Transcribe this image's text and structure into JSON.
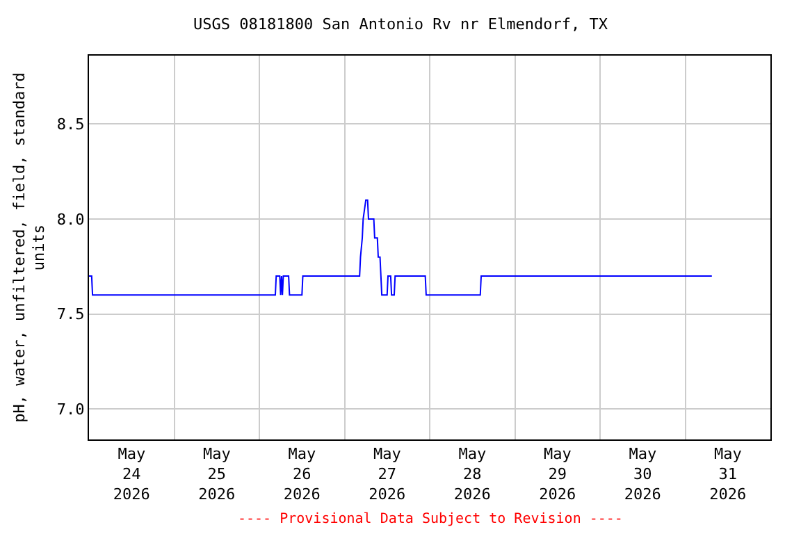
{
  "chart_data": {
    "type": "line",
    "title": "USGS 08181800 San Antonio Rv nr Elmendorf, TX",
    "ylabel": "pH, water, unfiltered, field, standard\nunits",
    "annotations": [
      "---- Provisional Data Subject to Revision ----"
    ],
    "x": [
      "2026-05-24T00:00",
      "2026-05-24T00:45",
      "2026-05-24T01:00",
      "2026-05-26T04:30",
      "2026-05-26T04:45",
      "2026-05-26T05:45",
      "2026-05-26T06:00",
      "2026-05-26T06:15",
      "2026-05-26T06:30",
      "2026-05-26T06:45",
      "2026-05-26T08:15",
      "2026-05-26T08:30",
      "2026-05-26T12:00",
      "2026-05-26T12:15",
      "2026-05-27T04:15",
      "2026-05-27T04:30",
      "2026-05-27T05:00",
      "2026-05-27T05:15",
      "2026-05-27T06:00",
      "2026-05-27T06:30",
      "2026-05-27T06:45",
      "2026-05-27T08:15",
      "2026-05-27T08:30",
      "2026-05-27T09:15",
      "2026-05-27T09:30",
      "2026-05-27T10:00",
      "2026-05-27T10:15",
      "2026-05-27T10:30",
      "2026-05-27T12:00",
      "2026-05-27T12:15",
      "2026-05-27T13:00",
      "2026-05-27T13:15",
      "2026-05-27T14:00",
      "2026-05-27T14:15",
      "2026-05-27T22:45",
      "2026-05-27T23:00",
      "2026-05-28T14:15",
      "2026-05-28T14:30",
      "2026-05-31T07:30"
    ],
    "series": [
      {
        "color": "#0000ff",
        "values": [
          7.7,
          7.7,
          7.6,
          7.6,
          7.7,
          7.7,
          7.6,
          7.7,
          7.6,
          7.7,
          7.7,
          7.6,
          7.6,
          7.7,
          7.7,
          7.8,
          7.9,
          8.0,
          8.1,
          8.1,
          8.0,
          8.0,
          7.9,
          7.9,
          7.8,
          7.8,
          7.7,
          7.6,
          7.6,
          7.7,
          7.7,
          7.6,
          7.6,
          7.7,
          7.7,
          7.6,
          7.6,
          7.7,
          7.7
        ]
      }
    ],
    "xlim": [
      "2026-05-24T00:00",
      "2026-06-01T00:00"
    ],
    "xticks": [
      {
        "value": "2026-05-24T00:00",
        "label": null
      },
      {
        "value": "2026-05-24T12:00",
        "label": "May\n24\n2026"
      },
      {
        "value": "2026-05-25T00:00",
        "label": null
      },
      {
        "value": "2026-05-25T12:00",
        "label": "May\n25\n2026"
      },
      {
        "value": "2026-05-26T00:00",
        "label": null
      },
      {
        "value": "2026-05-26T12:00",
        "label": "May\n26\n2026"
      },
      {
        "value": "2026-05-27T00:00",
        "label": null
      },
      {
        "value": "2026-05-27T12:00",
        "label": "May\n27\n2026"
      },
      {
        "value": "2026-05-28T00:00",
        "label": null
      },
      {
        "value": "2026-05-28T12:00",
        "label": "May\n28\n2026"
      },
      {
        "value": "2026-05-29T00:00",
        "label": null
      },
      {
        "value": "2026-05-29T12:00",
        "label": "May\n29\n2026"
      },
      {
        "value": "2026-05-30T00:00",
        "label": null
      },
      {
        "value": "2026-05-30T12:00",
        "label": "May\n30\n2026"
      },
      {
        "value": "2026-05-31T00:00",
        "label": null
      },
      {
        "value": "2026-05-31T12:00",
        "label": "May\n31\n2026"
      },
      {
        "value": "2026-06-01T00:00",
        "label": null
      }
    ],
    "ylim": [
      6.84,
      8.86
    ],
    "yticks": [
      {
        "value": 7.0,
        "label": "7.0"
      },
      {
        "value": 7.5,
        "label": "7.5"
      },
      {
        "value": 8.0,
        "label": "8.0"
      },
      {
        "value": 8.5,
        "label": "8.5"
      }
    ],
    "grid": true
  }
}
